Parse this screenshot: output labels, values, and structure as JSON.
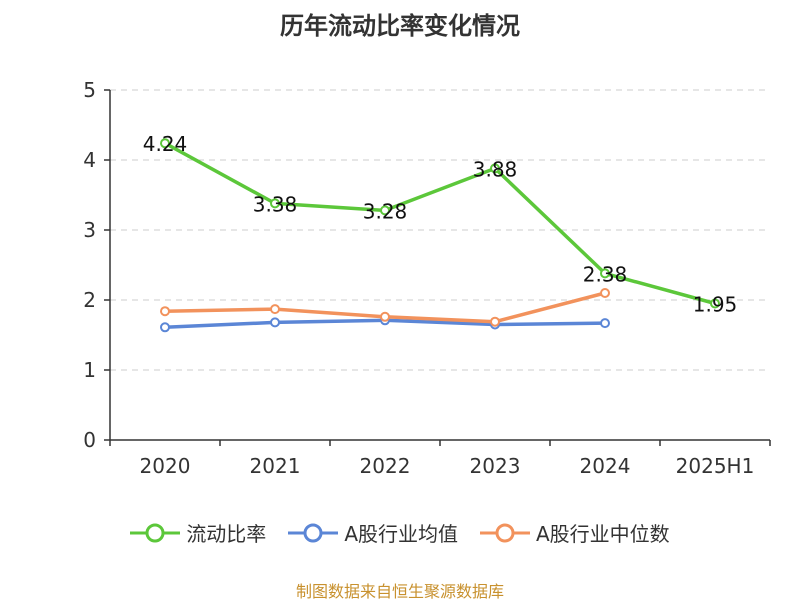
{
  "chart_data": {
    "type": "line",
    "title": "历年流动比率变化情况",
    "categories": [
      "2020",
      "2021",
      "2022",
      "2023",
      "2024",
      "2025H1"
    ],
    "y_ticks": [
      0,
      1,
      2,
      3,
      4,
      5
    ],
    "ylim": [
      0,
      5
    ],
    "grid": true,
    "legend_position": "bottom",
    "series": [
      {
        "name": "流动比率",
        "color": "#5cc73a",
        "values": [
          4.24,
          3.38,
          3.28,
          3.88,
          2.38,
          1.95
        ],
        "labels": [
          "4.24",
          "3.38",
          "3.28",
          "3.88",
          "2.38",
          "1.95"
        ]
      },
      {
        "name": "A股行业均值",
        "color": "#5b86d6",
        "values": [
          1.61,
          1.68,
          1.71,
          1.65,
          1.67,
          null
        ]
      },
      {
        "name": "A股行业中位数",
        "color": "#f2925c",
        "values": [
          1.84,
          1.87,
          1.76,
          1.69,
          2.1,
          null
        ]
      }
    ]
  },
  "source_text": "制图数据来自恒生聚源数据库"
}
